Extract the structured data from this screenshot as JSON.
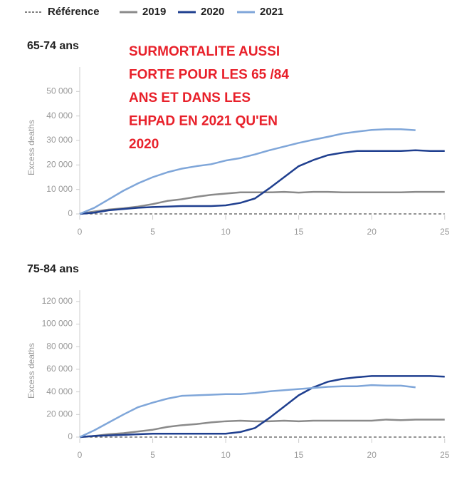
{
  "legend_source": 0,
  "chart_data": [
    {
      "type": "line",
      "title": "65-74 ans",
      "ylabel": "Excess deaths",
      "annotation": [
        "SURMORTALITE AUSSI",
        "FORTE POUR LES 65 /84",
        "ANS  ET DANS LES",
        "EHPAD  EN 2021 QU'EN",
        "2020"
      ],
      "x": [
        0,
        1,
        2,
        3,
        4,
        5,
        6,
        7,
        8,
        9,
        10,
        11,
        12,
        13,
        14,
        15,
        16,
        17,
        18,
        19,
        20,
        21,
        22,
        23,
        24,
        25
      ],
      "xlim": [
        0,
        25.5
      ],
      "xticks": [
        0,
        5,
        10,
        15,
        20,
        25
      ],
      "ylim": [
        0,
        60000
      ],
      "yticks": [
        0,
        {
          "value": 10000,
          "label": "10 000"
        },
        {
          "value": 20000,
          "label": "20 000"
        },
        {
          "value": 30000,
          "label": "30 000"
        },
        {
          "value": 40000,
          "label": "40 000"
        },
        {
          "value": 50000,
          "label": "50 000"
        }
      ],
      "series": [
        {
          "name": "Référence",
          "color": "#555555",
          "dashed": true,
          "values": [
            0,
            0,
            0,
            0,
            0,
            0,
            0,
            0,
            0,
            0,
            0,
            0,
            0,
            0,
            0,
            0,
            0,
            0,
            0,
            0,
            0,
            0,
            0,
            0,
            0,
            0
          ]
        },
        {
          "name": "2019",
          "color": "#8a8a8a",
          "values": [
            0,
            1000,
            1800,
            2300,
            3000,
            4000,
            5300,
            6000,
            7000,
            7800,
            8300,
            8800,
            8800,
            8800,
            9000,
            8700,
            9000,
            9000,
            8800,
            8800,
            8800,
            8800,
            8800,
            9000,
            9000,
            9000
          ]
        },
        {
          "name": "2020",
          "color": "#1f3f8f",
          "values": [
            0,
            500,
            1500,
            2000,
            2500,
            2800,
            3000,
            3200,
            3200,
            3200,
            3500,
            4500,
            6300,
            10500,
            15000,
            19500,
            22000,
            24000,
            25000,
            25700,
            25700,
            25700,
            25700,
            26000,
            25700,
            25700
          ]
        },
        {
          "name": "2021",
          "color": "#7fa6d9",
          "values": [
            0,
            2500,
            6000,
            9500,
            12500,
            15000,
            17000,
            18500,
            19500,
            20300,
            21800,
            22800,
            24300,
            26000,
            27500,
            29000,
            30300,
            31500,
            32800,
            33600,
            34300,
            34600,
            34600,
            34200,
            null,
            null
          ]
        }
      ]
    },
    {
      "type": "line",
      "title": "75-84 ans",
      "ylabel": "Excess deaths",
      "x": [
        0,
        1,
        2,
        3,
        4,
        5,
        6,
        7,
        8,
        9,
        10,
        11,
        12,
        13,
        14,
        15,
        16,
        17,
        18,
        19,
        20,
        21,
        22,
        23,
        24,
        25
      ],
      "xlim": [
        0,
        25.5
      ],
      "xticks": [
        0,
        5,
        10,
        15,
        20,
        25
      ],
      "ylim": [
        0,
        130000
      ],
      "yticks": [
        0,
        {
          "value": 20000,
          "label": "20 000"
        },
        {
          "value": 40000,
          "label": "40 000"
        },
        {
          "value": 60000,
          "label": "60 000"
        },
        {
          "value": 80000,
          "label": "80 000"
        },
        {
          "value": 100000,
          "label": "100 000"
        },
        {
          "value": 120000,
          "label": "120 000"
        }
      ],
      "series": [
        {
          "color": "#555555",
          "dashed": true,
          "values": [
            0,
            0,
            0,
            0,
            0,
            0,
            0,
            0,
            0,
            0,
            0,
            0,
            0,
            0,
            0,
            0,
            0,
            0,
            0,
            0,
            0,
            0,
            0,
            0,
            0,
            0
          ]
        },
        {
          "color": "#8a8a8a",
          "values": [
            0,
            1000,
            2500,
            3500,
            5000,
            6500,
            9000,
            10500,
            11500,
            13000,
            14000,
            14500,
            14000,
            14000,
            14500,
            14000,
            14500,
            14500,
            14500,
            14500,
            14500,
            15500,
            15000,
            15500,
            15500,
            15500
          ]
        },
        {
          "color": "#1f3f8f",
          "values": [
            0,
            1000,
            1500,
            2000,
            2500,
            3000,
            3000,
            3000,
            3000,
            3000,
            3000,
            4500,
            8000,
            17000,
            27000,
            37000,
            44000,
            49000,
            51500,
            53000,
            54000,
            54000,
            54000,
            54000,
            54000,
            53500
          ]
        },
        {
          "color": "#7fa6d9",
          "values": [
            0,
            6000,
            13000,
            20000,
            26500,
            30500,
            34000,
            36500,
            37000,
            37500,
            38000,
            38000,
            39000,
            40500,
            41500,
            42500,
            43500,
            44500,
            45000,
            45000,
            46000,
            45500,
            45500,
            44000,
            null,
            null
          ]
        }
      ]
    }
  ]
}
